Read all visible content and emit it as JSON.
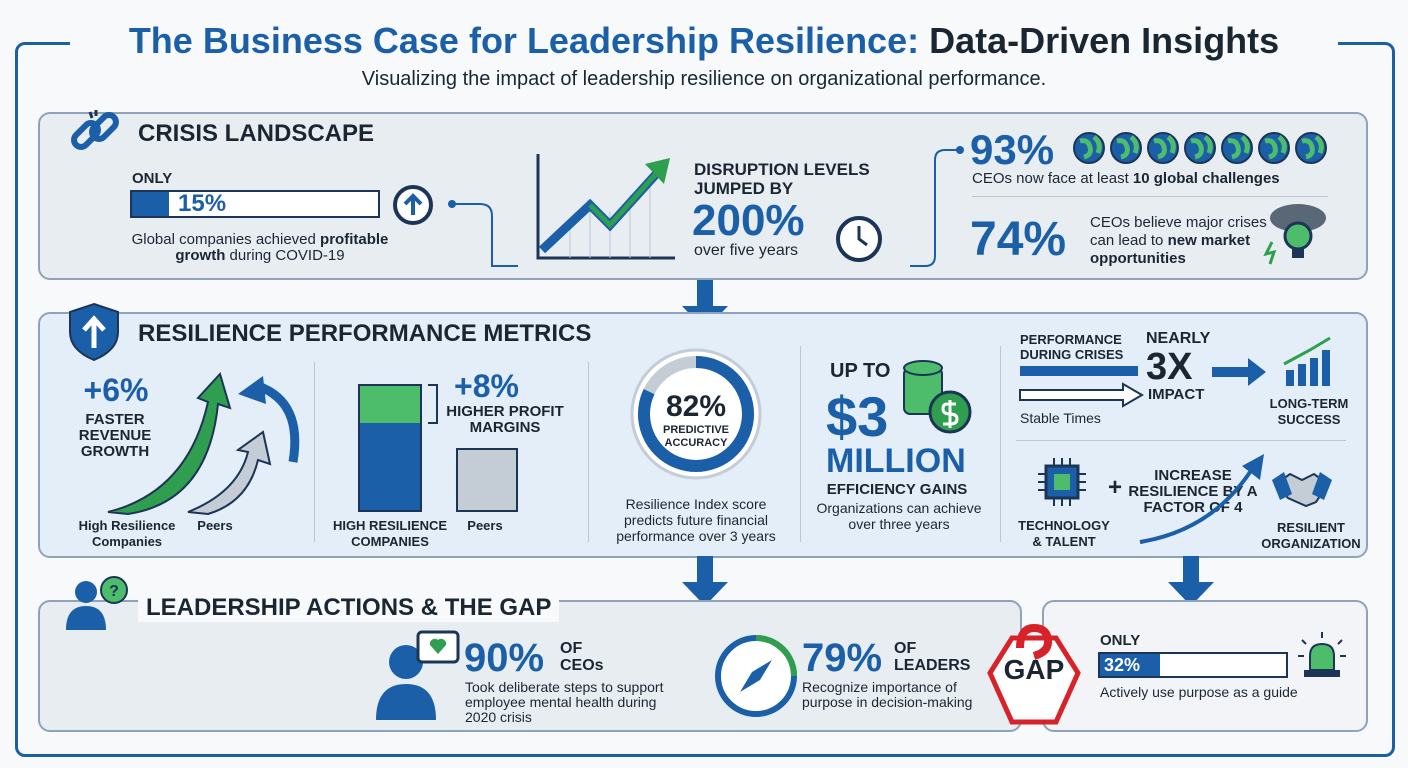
{
  "header": {
    "title_blue": "The Business Case for Leadership Resilience:",
    "title_dark": "Data-Driven Insights",
    "subtitle": "Visualizing the impact of leadership resilience on organizational performance."
  },
  "crisis": {
    "heading": "CRISIS LANDSCAPE",
    "profitable": {
      "prefix": "ONLY",
      "stat": {
        "value": 15,
        "label": "15%"
      },
      "caption": [
        "Global companies achieved ",
        "profitable growth",
        " during COVID-19"
      ]
    },
    "disruption": {
      "lead": "DISRUPTION LEVELS JUMPED BY",
      "stat": "200%",
      "caption": "over five years"
    },
    "global": {
      "stat": "93%",
      "caption": [
        "CEOs now face at least ",
        "10 global challenges"
      ]
    },
    "opportunities": {
      "stat": "74%",
      "caption": [
        "CEOs believe major crises can lead to ",
        "new market opportunities"
      ]
    }
  },
  "metrics": {
    "heading": "RESILIENCE PERFORMANCE METRICS",
    "revenue": {
      "stat": "+6%",
      "caption": "FASTER REVENUE GROWTH",
      "labels": [
        "High Resilience Companies",
        "Peers"
      ]
    },
    "profit": {
      "stat": "+8%",
      "caption": "HIGHER PROFIT MARGINS",
      "labels": [
        "HIGH RESILIENCE COMPANIES",
        "Peers"
      ]
    },
    "predictive": {
      "stat": {
        "value": 82,
        "label": "82%"
      },
      "caption": "PREDICTIVE ACCURACY",
      "note": "Resilience Index score predicts future financial performance over 3 years"
    },
    "efficiency": {
      "prefix": "UP TO",
      "stat": "$3",
      "unit": "MILLION",
      "caption": "EFFICIENCY GAINS",
      "note": "Organizations can achieve over three years"
    },
    "impact": {
      "crises": "PERFORMANCE DURING CRISES",
      "stable": "Stable Times",
      "prefix": "NEARLY",
      "stat": "3X",
      "caption": "IMPACT",
      "result": "LONG-TERM SUCCESS"
    },
    "factor": {
      "input": "TECHNOLOGY & TALENT",
      "caption": "INCREASE RESILIENCE BY A FACTOR OF 4",
      "result": "RESILIENT ORGANIZATION"
    }
  },
  "actions": {
    "heading": "LEADERSHIP ACTIONS & THE GAP",
    "mental_health": {
      "stat": "90%",
      "unit": "OF CEOs",
      "note": "Took deliberate steps to support employee mental health during 2020 crisis"
    },
    "purpose": {
      "stat": "79%",
      "unit": "OF LEADERS",
      "note": "Recognize importance of purpose in decision-making"
    },
    "gap": "GAP",
    "guide": {
      "prefix": "ONLY",
      "stat": {
        "value": 32,
        "label": "32%"
      },
      "note": "Actively use purpose as a guide"
    }
  }
}
